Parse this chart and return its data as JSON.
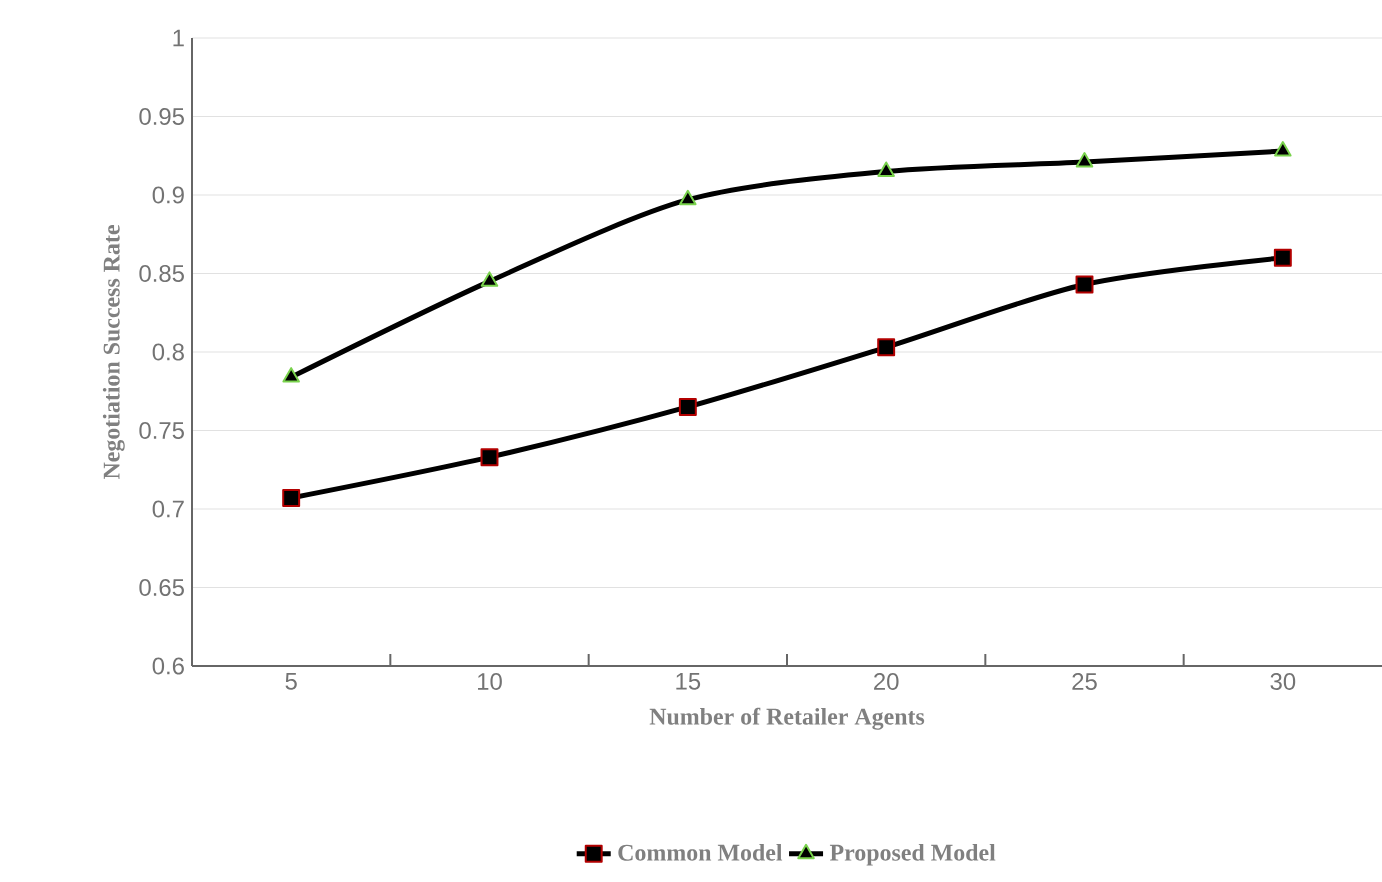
{
  "chart_data": {
    "type": "line",
    "xlabel": "Number of Retailer Agents",
    "ylabel": "Negotiation Success Rate",
    "categories": [
      "5",
      "10",
      "15",
      "20",
      "25",
      "30"
    ],
    "series": [
      {
        "name": "Common Model",
        "color": "#000000",
        "marker": "square",
        "values": [
          0.707,
          0.733,
          0.765,
          0.803,
          0.843,
          0.86
        ]
      },
      {
        "name": "Proposed Model",
        "color": "#000000",
        "marker": "triangle",
        "values": [
          0.784,
          0.845,
          0.897,
          0.915,
          0.921,
          0.928
        ]
      }
    ],
    "ylim": [
      0.6,
      1
    ],
    "yticks": [
      0.6,
      0.65,
      0.7,
      0.75,
      0.8,
      0.85,
      0.9,
      0.95,
      1
    ],
    "grid": "y",
    "legend": "bottom",
    "line_style": "solid"
  }
}
